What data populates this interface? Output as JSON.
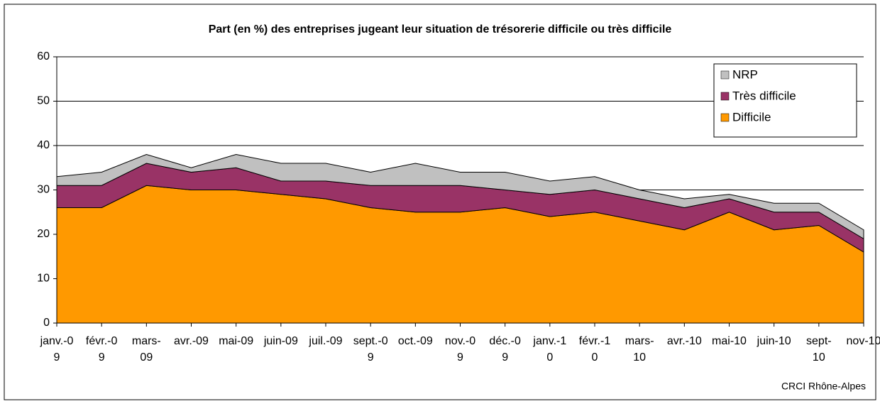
{
  "chart_data": {
    "type": "stacked_area",
    "title": "Part (en %) des entreprises jugeant leur situation de trésorerie difficile ou très difficile",
    "source": "CRCI Rhône-Alpes",
    "categories": [
      "janv.-09",
      "févr.-09",
      "mars-09",
      "avr.-09",
      "mai-09",
      "juin-09",
      "juil.-09",
      "sept.-09",
      "oct.-09",
      "nov.-09",
      "déc.-09",
      "janv.-10",
      "févr.-10",
      "mars-10",
      "avr.-10",
      "mai-10",
      "juin-10",
      "sept-10",
      "nov-10"
    ],
    "series": [
      {
        "name": "Difficile",
        "color": "#ff9900",
        "values": [
          26,
          26,
          31,
          30,
          30,
          29,
          28,
          26,
          25,
          25,
          26,
          24,
          25,
          23,
          21,
          25,
          21,
          22,
          16
        ]
      },
      {
        "name": "Très difficile",
        "color": "#993366",
        "values": [
          5,
          5,
          5,
          4,
          5,
          3,
          4,
          5,
          6,
          6,
          4,
          5,
          5,
          5,
          5,
          3,
          4,
          3,
          3
        ]
      },
      {
        "name": "NRP",
        "color": "#c0c0c0",
        "values": [
          2,
          3,
          2,
          1,
          3,
          4,
          4,
          3,
          5,
          3,
          4,
          3,
          3,
          2,
          2,
          1,
          2,
          2,
          2
        ]
      }
    ],
    "ylim": [
      0,
      60
    ],
    "yticks": [
      0,
      10,
      20,
      30,
      40,
      50,
      60
    ],
    "grid": true
  }
}
